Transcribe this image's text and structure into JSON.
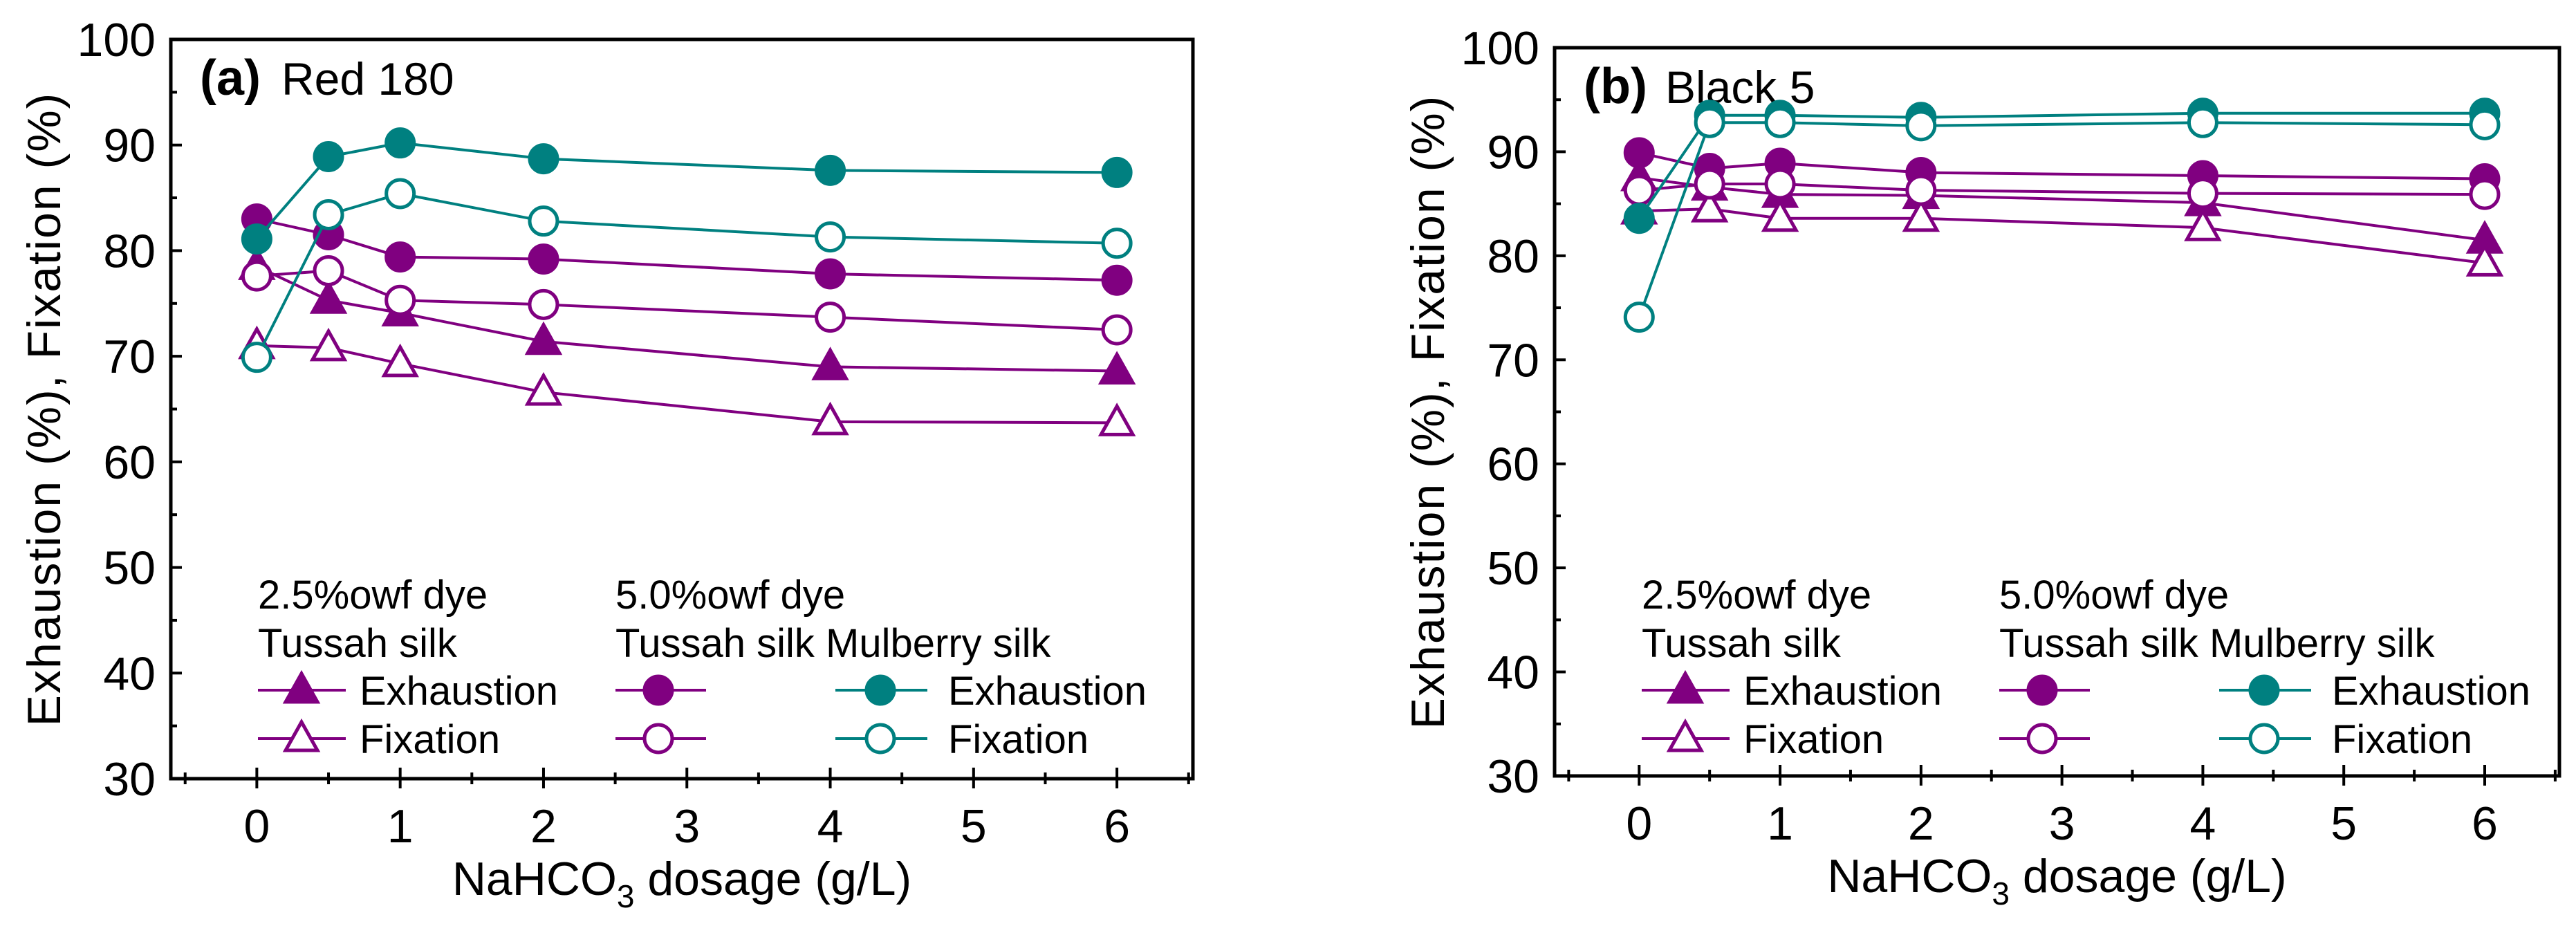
{
  "colors": {
    "purple": "#800080",
    "teal": "#008080",
    "axis": "#000000"
  },
  "chart_data": [
    {
      "type": "line",
      "panel_label": "(a)",
      "title": "Red 180",
      "xlabel_main": "NaHCO",
      "xlabel_sub": "3",
      "xlabel_rest": " dosage (g/L)",
      "ylabel": "Exhaustion (%), Fixation (%)",
      "xlim": [
        -0.6,
        6.53
      ],
      "ylim": [
        30,
        100
      ],
      "xticks": [
        0,
        1,
        2,
        3,
        4,
        5,
        6
      ],
      "yticks": [
        30,
        40,
        50,
        60,
        70,
        80,
        90,
        100
      ],
      "x": [
        0,
        0.5,
        1,
        2,
        4,
        6
      ],
      "legend": {
        "group1_title": "2.5%owf dye",
        "group1_fiber": "Tussah silk",
        "group2_title": "5.0%owf dye",
        "group2_fiber": "Tussah silk Mulberry silk",
        "exhaustion": "Exhaustion",
        "fixation": "Fixation"
      },
      "series": [
        {
          "name": "2.5%owf Tussah silk Exhaustion",
          "color": "purple",
          "marker": "triangle",
          "filled": true,
          "values": [
            78.5,
            75.3,
            74.1,
            71.4,
            69.0,
            68.6
          ]
        },
        {
          "name": "2.5%owf Tussah silk Fixation",
          "color": "purple",
          "marker": "triangle",
          "filled": false,
          "values": [
            71.0,
            70.8,
            69.3,
            66.6,
            63.8,
            63.7
          ]
        },
        {
          "name": "5.0%owf Tussah silk Exhaustion",
          "color": "purple",
          "marker": "circle",
          "filled": true,
          "values": [
            83.0,
            81.5,
            79.4,
            79.2,
            77.8,
            77.2
          ]
        },
        {
          "name": "5.0%owf Tussah silk Fixation",
          "color": "purple",
          "marker": "circle",
          "filled": false,
          "values": [
            77.6,
            78.1,
            75.3,
            74.9,
            73.7,
            72.5
          ]
        },
        {
          "name": "5.0%owf Mulberry silk Exhaustion",
          "color": "teal",
          "marker": "circle",
          "filled": true,
          "values": [
            81.1,
            88.9,
            90.2,
            88.7,
            87.6,
            87.4
          ]
        },
        {
          "name": "5.0%owf Mulberry silk Fixation",
          "color": "teal",
          "marker": "circle",
          "filled": false,
          "values": [
            69.9,
            83.4,
            85.4,
            82.8,
            81.3,
            80.7
          ]
        }
      ]
    },
    {
      "type": "line",
      "panel_label": "(b)",
      "title": "Black 5",
      "xlabel_main": "NaHCO",
      "xlabel_sub": "3",
      "xlabel_rest": " dosage (g/L)",
      "ylabel": "Exhaustion (%), Fixation (%)",
      "xlim": [
        -0.6,
        6.53
      ],
      "ylim": [
        30,
        100
      ],
      "xticks": [
        0,
        1,
        2,
        3,
        4,
        5,
        6
      ],
      "yticks": [
        30,
        40,
        50,
        60,
        70,
        80,
        90,
        100
      ],
      "x": [
        0,
        0.5,
        1,
        2,
        4,
        6
      ],
      "legend": {
        "group1_title": "2.5%owf dye",
        "group1_fiber": "Tussah silk",
        "group2_title": "5.0%owf dye",
        "group2_fiber": "Tussah silk Mulberry silk",
        "exhaustion": "Exhaustion",
        "fixation": "Fixation"
      },
      "series": [
        {
          "name": "2.5%owf Tussah silk Exhaustion",
          "color": "purple",
          "marker": "triangle",
          "filled": true,
          "values": [
            87.5,
            86.6,
            85.9,
            85.8,
            85.1,
            81.5
          ]
        },
        {
          "name": "2.5%owf Tussah silk Fixation",
          "color": "purple",
          "marker": "triangle",
          "filled": false,
          "values": [
            84.3,
            84.5,
            83.6,
            83.6,
            82.7,
            79.3
          ]
        },
        {
          "name": "5.0%owf Tussah silk Exhaustion",
          "color": "purple",
          "marker": "circle",
          "filled": true,
          "values": [
            89.9,
            88.4,
            88.9,
            88.0,
            87.7,
            87.4
          ]
        },
        {
          "name": "5.0%owf Tussah silk Fixation",
          "color": "purple",
          "marker": "circle",
          "filled": false,
          "values": [
            86.3,
            86.9,
            86.9,
            86.3,
            86.0,
            85.9
          ]
        },
        {
          "name": "5.0%owf Mulberry silk Exhaustion",
          "color": "teal",
          "marker": "circle",
          "filled": true,
          "values": [
            83.6,
            93.5,
            93.5,
            93.3,
            93.7,
            93.7
          ]
        },
        {
          "name": "5.0%owf Mulberry silk Fixation",
          "color": "teal",
          "marker": "circle",
          "filled": false,
          "values": [
            74.1,
            92.8,
            92.8,
            92.5,
            92.8,
            92.6
          ]
        }
      ]
    }
  ]
}
